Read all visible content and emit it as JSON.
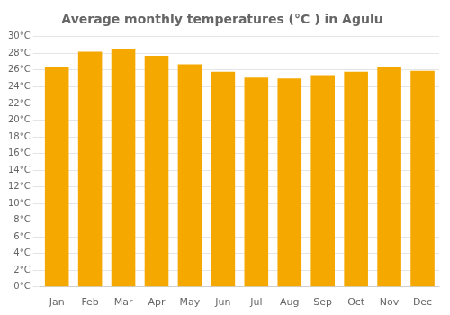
{
  "chart_data": {
    "type": "bar",
    "title": "Average monthly temperatures (°C ) in Agulu",
    "categories": [
      "Jan",
      "Feb",
      "Mar",
      "Apr",
      "May",
      "Jun",
      "Jul",
      "Aug",
      "Sep",
      "Oct",
      "Nov",
      "Dec"
    ],
    "values": [
      26.3,
      28.2,
      28.5,
      27.7,
      26.7,
      25.8,
      25.1,
      25.0,
      25.4,
      25.8,
      26.4,
      25.9
    ],
    "color": "#F5A800",
    "ylim": [
      0,
      30
    ],
    "yticks": [
      {
        "value": 0,
        "label": "0°C"
      },
      {
        "value": 2,
        "label": "2°C"
      },
      {
        "value": 4,
        "label": "4°C"
      },
      {
        "value": 6,
        "label": "6°C"
      },
      {
        "value": 8,
        "label": "8°C"
      },
      {
        "value": 10,
        "label": "10°C"
      },
      {
        "value": 12,
        "label": "12°C"
      },
      {
        "value": 14,
        "label": "14°C"
      },
      {
        "value": 16,
        "label": "16°C"
      },
      {
        "value": 18,
        "label": "18°C"
      },
      {
        "value": 20,
        "label": "20°C"
      },
      {
        "value": 22,
        "label": "22°C"
      },
      {
        "value": 24,
        "label": "24°C"
      },
      {
        "value": 26,
        "label": "26°C"
      },
      {
        "value": 28,
        "label": "28°C"
      },
      {
        "value": 30,
        "label": "30°C"
      }
    ],
    "grid": true
  }
}
